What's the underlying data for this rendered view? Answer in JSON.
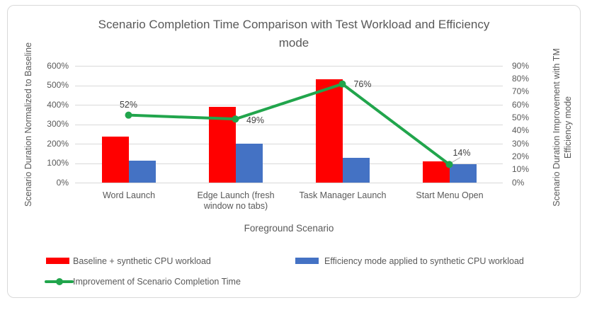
{
  "chart": {
    "title_lines": [
      "Scenario Completion Time Comparison with Test Workload and Efficiency",
      "mode"
    ],
    "left_axis": {
      "title": "Scenario Duration Normalized to Baseline",
      "ticks": [
        "600%",
        "500%",
        "400%",
        "300%",
        "200%",
        "100%",
        "0%"
      ]
    },
    "right_axis": {
      "title_lines": [
        "Scenario Duration Improvement with TM",
        "Efficiency mode"
      ],
      "ticks": [
        "90%",
        "80%",
        "70%",
        "60%",
        "50%",
        "40%",
        "30%",
        "20%",
        "10%",
        "0%"
      ]
    },
    "x_axis": {
      "title": "Foreground Scenario"
    }
  },
  "chart_data": {
    "type": "bar",
    "subtype": "combo bar+line, dual y-axes",
    "title": "Scenario Completion Time Comparison with Test Workload and Efficiency mode",
    "xlabel": "Foreground Scenario",
    "ylabel_left": "Scenario Duration Normalized to Baseline",
    "ylabel_right": "Scenario Duration Improvement with TM Efficiency mode",
    "ylim_left": [
      0,
      600
    ],
    "ylim_right": [
      0,
      90
    ],
    "grid": true,
    "legend_position": "bottom",
    "categories": [
      "Word Launch",
      "Edge Launch (fresh window no tabs)",
      "Task Manager Launch",
      "Start Menu Open"
    ],
    "series": [
      {
        "name": "Baseline + synthetic CPU  workload",
        "type": "bar",
        "axis": "left",
        "color": "#ff0000",
        "values": [
          235,
          390,
          530,
          108
        ]
      },
      {
        "name": "Efficiency mode applied to synthetic CPU workload",
        "type": "bar",
        "axis": "left",
        "color": "#4472c4",
        "values": [
          112,
          200,
          127,
          93
        ]
      },
      {
        "name": "Improvement of Scenario Completion Time",
        "type": "line",
        "axis": "right",
        "color": "#21a54c",
        "values": [
          52,
          49,
          76,
          14
        ],
        "data_labels": [
          "52%",
          "49%",
          "76%",
          "14%"
        ]
      }
    ]
  },
  "colors": {
    "baseline_bar": "#ff0000",
    "efficiency_bar": "#4472c4",
    "improvement_line": "#21a54c",
    "text": "#595959",
    "data_label_text": "#404040",
    "gridline": "#d9d9d9",
    "frame_border": "#d9d9d9",
    "leader_line": "#a6a6a6",
    "background": "#ffffff"
  }
}
